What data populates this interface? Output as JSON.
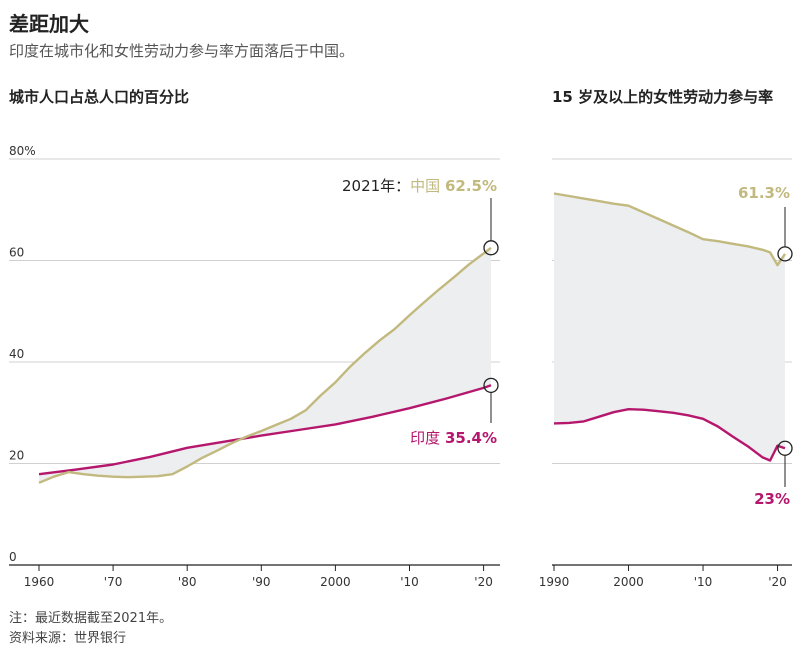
{
  "header": {
    "title": "差距加大",
    "subtitle": "印度在城市化和女性劳动力参与率方面落后于中国。"
  },
  "footer": {
    "note": "注：最近数据截至2021年。",
    "source": "资料来源：世界银行"
  },
  "colors": {
    "china": "#c2b97f",
    "india": "#b5176d",
    "band": "#eceef0"
  },
  "chart_data": [
    {
      "type": "line",
      "title": "城市人口占总人口的百分比",
      "ylim": [
        0,
        80
      ],
      "y_tick_labels": [
        "80%",
        "60",
        "40",
        "20",
        "0"
      ],
      "x_tick_labels": [
        "1960",
        "'70",
        "'80",
        "'90",
        "2000",
        "'10",
        "'20"
      ],
      "xlim": [
        1960,
        2021
      ],
      "series": [
        {
          "name": "中国",
          "x": [
            1960,
            1962,
            1964,
            1966,
            1968,
            1970,
            1972,
            1974,
            1976,
            1978,
            1980,
            1982,
            1984,
            1986,
            1988,
            1990,
            1992,
            1994,
            1996,
            1998,
            2000,
            2002,
            2004,
            2006,
            2008,
            2010,
            2012,
            2014,
            2016,
            2018,
            2020,
            2021
          ],
          "y": [
            16.2,
            17.4,
            18.3,
            17.9,
            17.6,
            17.4,
            17.3,
            17.4,
            17.5,
            17.9,
            19.4,
            21.1,
            22.5,
            24.0,
            25.3,
            26.4,
            27.6,
            28.8,
            30.5,
            33.4,
            36.0,
            39.1,
            41.8,
            44.3,
            46.5,
            49.2,
            51.8,
            54.3,
            56.7,
            59.2,
            61.4,
            62.5
          ]
        },
        {
          "name": "印度",
          "x": [
            1960,
            1965,
            1970,
            1975,
            1980,
            1985,
            1990,
            1995,
            2000,
            2005,
            2010,
            2015,
            2020,
            2021
          ],
          "y": [
            17.9,
            18.8,
            19.8,
            21.3,
            23.1,
            24.3,
            25.5,
            26.6,
            27.7,
            29.2,
            30.9,
            32.8,
            34.9,
            35.4
          ]
        }
      ],
      "annotations": {
        "china_prefix": "2021年：",
        "china_label": "中国",
        "china_value": "62.5%",
        "india_label": "印度",
        "india_value": "35.4%"
      }
    },
    {
      "type": "line",
      "title": "15 岁及以上的女性劳动力参与率",
      "ylim": [
        0,
        80
      ],
      "x_tick_labels": [
        "1990",
        "2000",
        "'10",
        "'20"
      ],
      "xlim": [
        1990,
        2021
      ],
      "series": [
        {
          "name": "中国",
          "x": [
            1990,
            1992,
            1994,
            1996,
            1998,
            2000,
            2002,
            2004,
            2006,
            2008,
            2010,
            2012,
            2014,
            2016,
            2018,
            2019,
            2020,
            2021
          ],
          "y": [
            73.2,
            72.7,
            72.2,
            71.7,
            71.2,
            70.8,
            69.5,
            68.2,
            66.9,
            65.6,
            64.2,
            63.8,
            63.3,
            62.8,
            62.1,
            61.6,
            59.1,
            61.3
          ]
        },
        {
          "name": "印度",
          "x": [
            1990,
            1992,
            1994,
            1996,
            1998,
            2000,
            2002,
            2004,
            2006,
            2008,
            2010,
            2012,
            2014,
            2016,
            2018,
            2019,
            2020,
            2021
          ],
          "y": [
            27.9,
            28.0,
            28.3,
            29.2,
            30.1,
            30.7,
            30.6,
            30.3,
            30.0,
            29.5,
            28.8,
            27.3,
            25.3,
            23.4,
            21.2,
            20.6,
            23.5,
            23.0
          ]
        }
      ],
      "annotations": {
        "china_value": "61.3%",
        "india_value": "23%"
      }
    }
  ]
}
